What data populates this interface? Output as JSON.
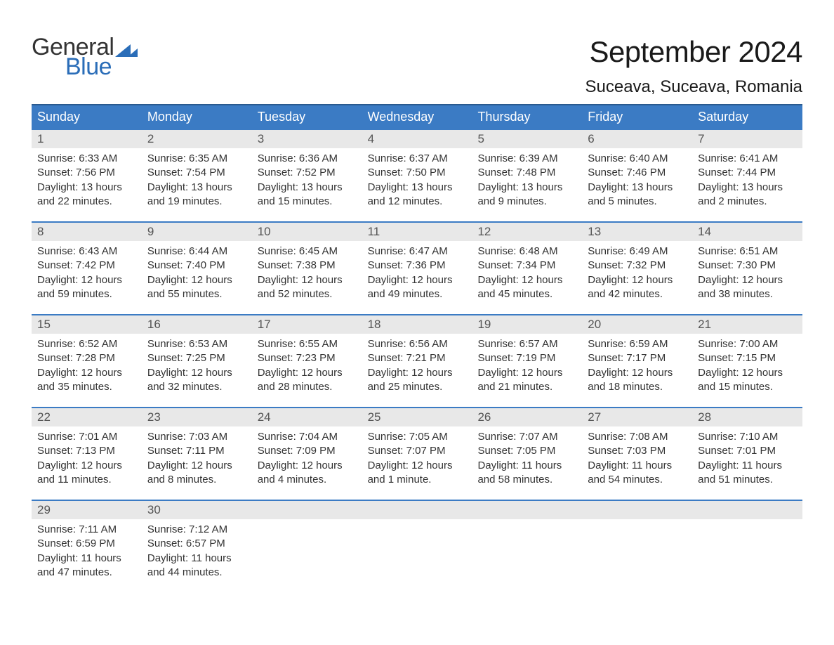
{
  "logo": {
    "top": "General",
    "bottom": "Blue"
  },
  "title": {
    "month": "September 2024",
    "location": "Suceava, Suceava, Romania"
  },
  "colors": {
    "header_bg": "#3b7bc4",
    "header_border": "#2a5a8f",
    "day_number_bg": "#e8e8e8",
    "text": "#333333",
    "logo_blue": "#2a6db8"
  },
  "day_headers": [
    "Sunday",
    "Monday",
    "Tuesday",
    "Wednesday",
    "Thursday",
    "Friday",
    "Saturday"
  ],
  "weeks": [
    [
      {
        "num": "1",
        "sunrise": "Sunrise: 6:33 AM",
        "sunset": "Sunset: 7:56 PM",
        "daylight1": "Daylight: 13 hours",
        "daylight2": "and 22 minutes."
      },
      {
        "num": "2",
        "sunrise": "Sunrise: 6:35 AM",
        "sunset": "Sunset: 7:54 PM",
        "daylight1": "Daylight: 13 hours",
        "daylight2": "and 19 minutes."
      },
      {
        "num": "3",
        "sunrise": "Sunrise: 6:36 AM",
        "sunset": "Sunset: 7:52 PM",
        "daylight1": "Daylight: 13 hours",
        "daylight2": "and 15 minutes."
      },
      {
        "num": "4",
        "sunrise": "Sunrise: 6:37 AM",
        "sunset": "Sunset: 7:50 PM",
        "daylight1": "Daylight: 13 hours",
        "daylight2": "and 12 minutes."
      },
      {
        "num": "5",
        "sunrise": "Sunrise: 6:39 AM",
        "sunset": "Sunset: 7:48 PM",
        "daylight1": "Daylight: 13 hours",
        "daylight2": "and 9 minutes."
      },
      {
        "num": "6",
        "sunrise": "Sunrise: 6:40 AM",
        "sunset": "Sunset: 7:46 PM",
        "daylight1": "Daylight: 13 hours",
        "daylight2": "and 5 minutes."
      },
      {
        "num": "7",
        "sunrise": "Sunrise: 6:41 AM",
        "sunset": "Sunset: 7:44 PM",
        "daylight1": "Daylight: 13 hours",
        "daylight2": "and 2 minutes."
      }
    ],
    [
      {
        "num": "8",
        "sunrise": "Sunrise: 6:43 AM",
        "sunset": "Sunset: 7:42 PM",
        "daylight1": "Daylight: 12 hours",
        "daylight2": "and 59 minutes."
      },
      {
        "num": "9",
        "sunrise": "Sunrise: 6:44 AM",
        "sunset": "Sunset: 7:40 PM",
        "daylight1": "Daylight: 12 hours",
        "daylight2": "and 55 minutes."
      },
      {
        "num": "10",
        "sunrise": "Sunrise: 6:45 AM",
        "sunset": "Sunset: 7:38 PM",
        "daylight1": "Daylight: 12 hours",
        "daylight2": "and 52 minutes."
      },
      {
        "num": "11",
        "sunrise": "Sunrise: 6:47 AM",
        "sunset": "Sunset: 7:36 PM",
        "daylight1": "Daylight: 12 hours",
        "daylight2": "and 49 minutes."
      },
      {
        "num": "12",
        "sunrise": "Sunrise: 6:48 AM",
        "sunset": "Sunset: 7:34 PM",
        "daylight1": "Daylight: 12 hours",
        "daylight2": "and 45 minutes."
      },
      {
        "num": "13",
        "sunrise": "Sunrise: 6:49 AM",
        "sunset": "Sunset: 7:32 PM",
        "daylight1": "Daylight: 12 hours",
        "daylight2": "and 42 minutes."
      },
      {
        "num": "14",
        "sunrise": "Sunrise: 6:51 AM",
        "sunset": "Sunset: 7:30 PM",
        "daylight1": "Daylight: 12 hours",
        "daylight2": "and 38 minutes."
      }
    ],
    [
      {
        "num": "15",
        "sunrise": "Sunrise: 6:52 AM",
        "sunset": "Sunset: 7:28 PM",
        "daylight1": "Daylight: 12 hours",
        "daylight2": "and 35 minutes."
      },
      {
        "num": "16",
        "sunrise": "Sunrise: 6:53 AM",
        "sunset": "Sunset: 7:25 PM",
        "daylight1": "Daylight: 12 hours",
        "daylight2": "and 32 minutes."
      },
      {
        "num": "17",
        "sunrise": "Sunrise: 6:55 AM",
        "sunset": "Sunset: 7:23 PM",
        "daylight1": "Daylight: 12 hours",
        "daylight2": "and 28 minutes."
      },
      {
        "num": "18",
        "sunrise": "Sunrise: 6:56 AM",
        "sunset": "Sunset: 7:21 PM",
        "daylight1": "Daylight: 12 hours",
        "daylight2": "and 25 minutes."
      },
      {
        "num": "19",
        "sunrise": "Sunrise: 6:57 AM",
        "sunset": "Sunset: 7:19 PM",
        "daylight1": "Daylight: 12 hours",
        "daylight2": "and 21 minutes."
      },
      {
        "num": "20",
        "sunrise": "Sunrise: 6:59 AM",
        "sunset": "Sunset: 7:17 PM",
        "daylight1": "Daylight: 12 hours",
        "daylight2": "and 18 minutes."
      },
      {
        "num": "21",
        "sunrise": "Sunrise: 7:00 AM",
        "sunset": "Sunset: 7:15 PM",
        "daylight1": "Daylight: 12 hours",
        "daylight2": "and 15 minutes."
      }
    ],
    [
      {
        "num": "22",
        "sunrise": "Sunrise: 7:01 AM",
        "sunset": "Sunset: 7:13 PM",
        "daylight1": "Daylight: 12 hours",
        "daylight2": "and 11 minutes."
      },
      {
        "num": "23",
        "sunrise": "Sunrise: 7:03 AM",
        "sunset": "Sunset: 7:11 PM",
        "daylight1": "Daylight: 12 hours",
        "daylight2": "and 8 minutes."
      },
      {
        "num": "24",
        "sunrise": "Sunrise: 7:04 AM",
        "sunset": "Sunset: 7:09 PM",
        "daylight1": "Daylight: 12 hours",
        "daylight2": "and 4 minutes."
      },
      {
        "num": "25",
        "sunrise": "Sunrise: 7:05 AM",
        "sunset": "Sunset: 7:07 PM",
        "daylight1": "Daylight: 12 hours",
        "daylight2": "and 1 minute."
      },
      {
        "num": "26",
        "sunrise": "Sunrise: 7:07 AM",
        "sunset": "Sunset: 7:05 PM",
        "daylight1": "Daylight: 11 hours",
        "daylight2": "and 58 minutes."
      },
      {
        "num": "27",
        "sunrise": "Sunrise: 7:08 AM",
        "sunset": "Sunset: 7:03 PM",
        "daylight1": "Daylight: 11 hours",
        "daylight2": "and 54 minutes."
      },
      {
        "num": "28",
        "sunrise": "Sunrise: 7:10 AM",
        "sunset": "Sunset: 7:01 PM",
        "daylight1": "Daylight: 11 hours",
        "daylight2": "and 51 minutes."
      }
    ],
    [
      {
        "num": "29",
        "sunrise": "Sunrise: 7:11 AM",
        "sunset": "Sunset: 6:59 PM",
        "daylight1": "Daylight: 11 hours",
        "daylight2": "and 47 minutes."
      },
      {
        "num": "30",
        "sunrise": "Sunrise: 7:12 AM",
        "sunset": "Sunset: 6:57 PM",
        "daylight1": "Daylight: 11 hours",
        "daylight2": "and 44 minutes."
      },
      null,
      null,
      null,
      null,
      null
    ]
  ]
}
